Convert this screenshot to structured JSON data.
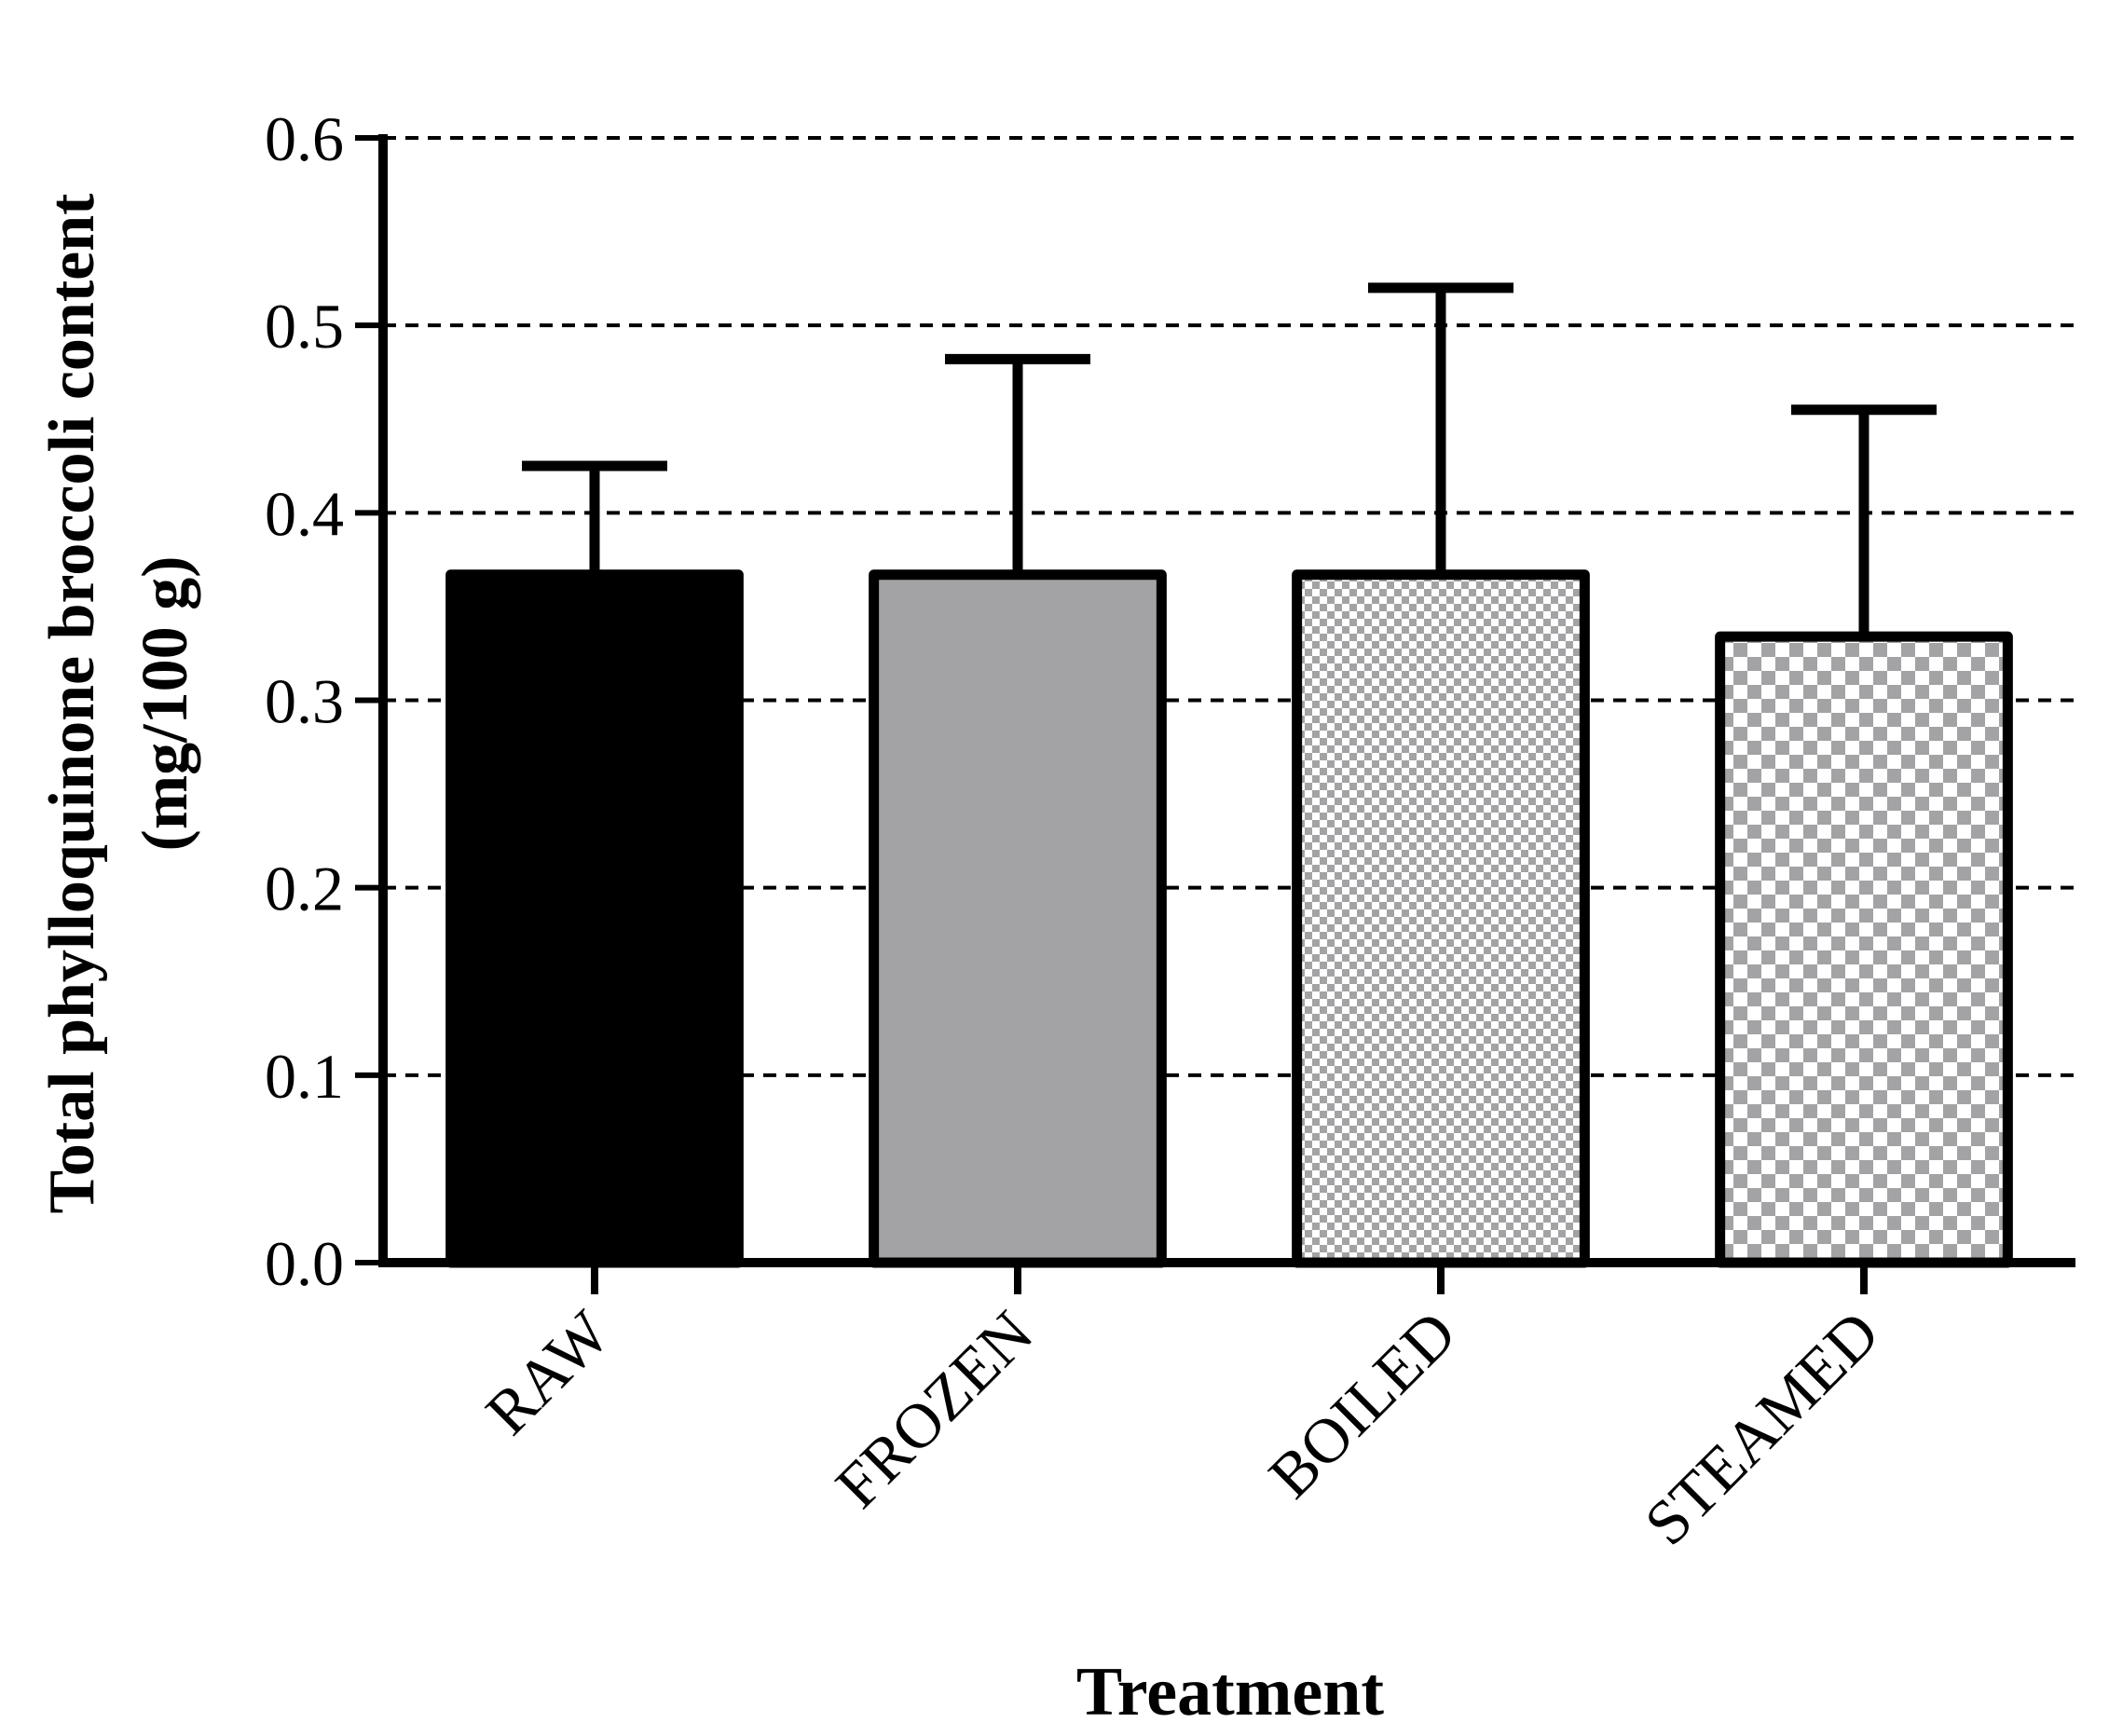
{
  "chart_data": {
    "type": "bar",
    "ylabel": [
      "Total phylloquinone broccoli content",
      "(mg/100 g)"
    ],
    "xlabel": "Treatment",
    "categories": [
      "RAW",
      "FROZEN",
      "BOILED",
      "STEAMED"
    ],
    "values": [
      0.367,
      0.367,
      0.367,
      0.334
    ],
    "errors": [
      0.058,
      0.115,
      0.153,
      0.121
    ],
    "colors": [
      "#000000",
      "#a3a3a6",
      "#a3a3a6",
      "#a3a3a6"
    ],
    "patterns": [
      "solid",
      "solid",
      "checker-fine",
      "checker-coarse"
    ],
    "ylim": [
      0,
      0.6
    ],
    "yticks": [
      {
        "value": 0,
        "label": "0.0"
      },
      0.1,
      0.2,
      0.3,
      0.4,
      0.5,
      0.6
    ],
    "grid": true
  }
}
